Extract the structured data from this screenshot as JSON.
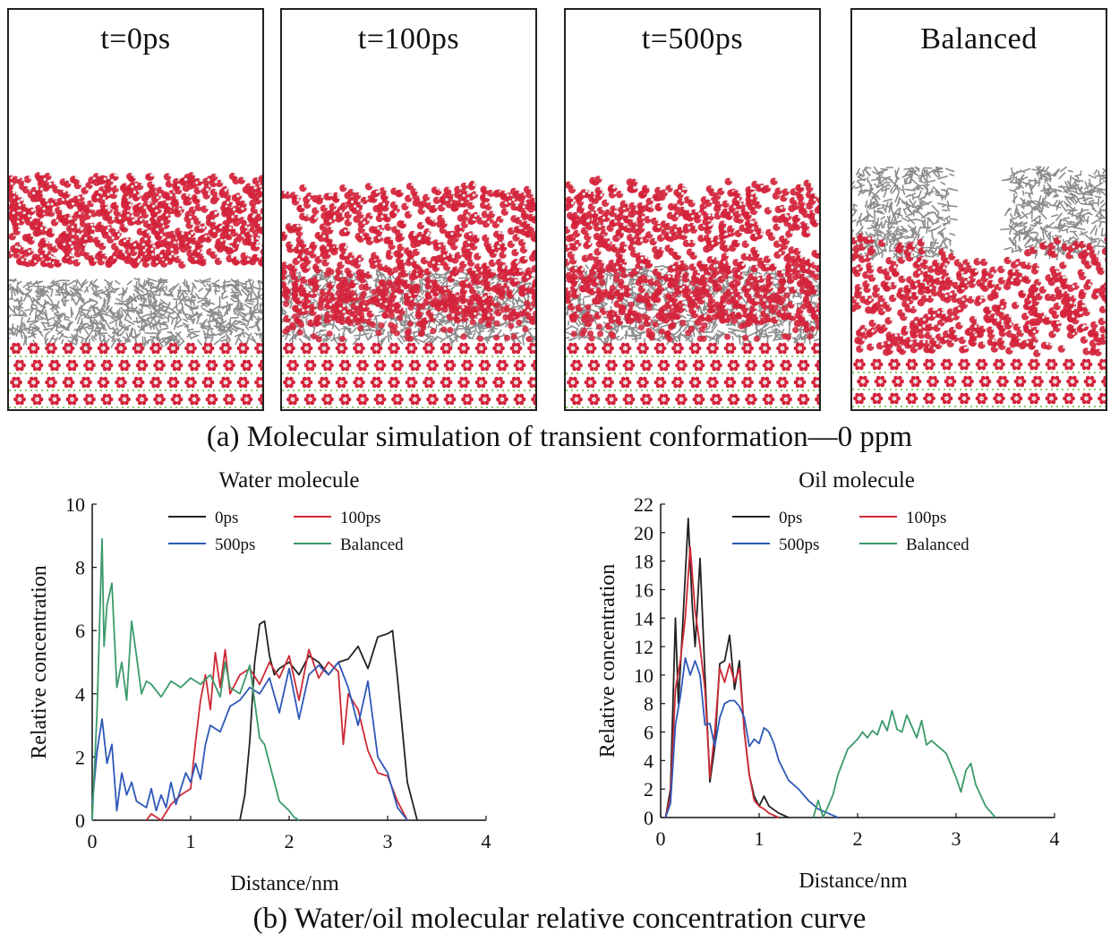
{
  "figure_a": {
    "caption": "(a) Molecular simulation of transient conformation—0 ppm",
    "panels": [
      {
        "label": "t=0ps"
      },
      {
        "label": "t=100ps"
      },
      {
        "label": "t=500ps"
      },
      {
        "label": "Balanced"
      }
    ]
  },
  "figure_b": {
    "caption": "(b) Water/oil molecular relative concentration curve"
  },
  "colors": {
    "0ps": "#222222",
    "100ps": "#cc2a36",
    "500ps": "#2e58b8",
    "Balanced": "#3a9a6a",
    "water_molecule": "#d4233b",
    "oil_molecule": "#8c8c8c",
    "substrate_accent": "#5cb82e"
  },
  "chart_data": [
    {
      "type": "line",
      "title": "Water molecule",
      "xlabel": "Distance/nm",
      "ylabel": "Relative concentration",
      "xlim": [
        0,
        4
      ],
      "ylim": [
        0,
        10
      ],
      "xticks": [
        "0",
        "1",
        "2",
        "3",
        "4"
      ],
      "yticks": [
        "0",
        "2",
        "4",
        "6",
        "8",
        "10"
      ],
      "legend": "top",
      "series": [
        {
          "name": "0ps",
          "x": [
            1.5,
            1.55,
            1.6,
            1.65,
            1.7,
            1.75,
            1.8,
            1.85,
            1.9,
            2.0,
            2.1,
            2.2,
            2.3,
            2.4,
            2.5,
            2.6,
            2.7,
            2.8,
            2.9,
            3.0,
            3.05,
            3.1,
            3.2,
            3.3
          ],
          "y": [
            0,
            0.8,
            2.5,
            5.0,
            6.2,
            6.3,
            5.2,
            4.6,
            4.8,
            5.0,
            4.6,
            5.2,
            5.0,
            4.6,
            5.0,
            5.1,
            5.5,
            4.8,
            5.8,
            5.9,
            6.0,
            4.5,
            1.2,
            0
          ]
        },
        {
          "name": "100ps",
          "x": [
            0.55,
            0.6,
            0.7,
            0.8,
            0.9,
            1.0,
            1.05,
            1.1,
            1.15,
            1.2,
            1.25,
            1.3,
            1.35,
            1.4,
            1.5,
            1.6,
            1.7,
            1.8,
            1.9,
            2.0,
            2.1,
            2.2,
            2.3,
            2.4,
            2.5,
            2.55,
            2.6,
            2.7,
            2.8,
            2.9,
            3.0,
            3.1,
            3.2
          ],
          "y": [
            0,
            0.2,
            0,
            0.5,
            0.8,
            1.0,
            2.5,
            3.8,
            4.6,
            3.5,
            5.3,
            4.2,
            5.4,
            4.0,
            4.6,
            4.8,
            4.3,
            5.0,
            4.5,
            5.2,
            3.8,
            5.4,
            4.5,
            5.0,
            4.7,
            2.4,
            4.0,
            3.5,
            2.2,
            1.5,
            1.4,
            0.6,
            0
          ]
        },
        {
          "name": "500ps",
          "x": [
            0,
            0.05,
            0.1,
            0.15,
            0.2,
            0.25,
            0.3,
            0.35,
            0.4,
            0.45,
            0.5,
            0.55,
            0.6,
            0.65,
            0.7,
            0.75,
            0.8,
            0.85,
            0.9,
            0.95,
            1.0,
            1.05,
            1.1,
            1.15,
            1.2,
            1.3,
            1.4,
            1.5,
            1.6,
            1.7,
            1.8,
            1.9,
            2.0,
            2.1,
            2.2,
            2.3,
            2.4,
            2.5,
            2.6,
            2.7,
            2.8,
            2.9,
            3.0,
            3.1,
            3.2
          ],
          "y": [
            0.5,
            2.2,
            3.2,
            1.8,
            2.4,
            0.3,
            1.5,
            0.8,
            1.2,
            0.6,
            0.5,
            0.4,
            1.0,
            0.3,
            0.8,
            0.4,
            1.2,
            0.5,
            1.0,
            1.5,
            1.2,
            1.8,
            1.3,
            2.4,
            3.0,
            2.8,
            3.6,
            3.8,
            4.2,
            4.0,
            4.5,
            3.4,
            4.8,
            3.2,
            4.6,
            4.9,
            4.6,
            5.0,
            4.2,
            3.0,
            4.4,
            2.0,
            1.5,
            0.4,
            0
          ]
        },
        {
          "name": "Balanced",
          "x": [
            0,
            0.05,
            0.1,
            0.12,
            0.15,
            0.2,
            0.25,
            0.3,
            0.35,
            0.4,
            0.45,
            0.5,
            0.55,
            0.6,
            0.7,
            0.8,
            0.9,
            1.0,
            1.1,
            1.2,
            1.3,
            1.35,
            1.4,
            1.5,
            1.6,
            1.7,
            1.75,
            1.8,
            1.9,
            2.0,
            2.05,
            2.1
          ],
          "y": [
            0,
            3.5,
            8.9,
            5.5,
            6.8,
            7.5,
            4.2,
            5.0,
            3.8,
            6.3,
            5.2,
            4.0,
            4.4,
            4.3,
            3.9,
            4.4,
            4.2,
            4.5,
            4.3,
            4.6,
            3.9,
            5.0,
            4.2,
            4.0,
            4.9,
            2.6,
            2.4,
            1.8,
            0.6,
            0.3,
            0.1,
            0
          ]
        }
      ]
    },
    {
      "type": "line",
      "title": "Oil molecule",
      "xlabel": "Distance/nm",
      "ylabel": "Relative concentration",
      "xlim": [
        0,
        4
      ],
      "ylim": [
        0,
        22
      ],
      "xticks": [
        "0",
        "1",
        "2",
        "3",
        "4"
      ],
      "yticks": [
        "0",
        "2",
        "4",
        "6",
        "8",
        "10",
        "12",
        "14",
        "16",
        "18",
        "20",
        "22"
      ],
      "legend": "top",
      "series": [
        {
          "name": "0ps",
          "x": [
            0.05,
            0.1,
            0.15,
            0.18,
            0.22,
            0.25,
            0.28,
            0.32,
            0.35,
            0.4,
            0.45,
            0.5,
            0.55,
            0.6,
            0.65,
            0.7,
            0.75,
            0.8,
            0.85,
            0.9,
            0.95,
            1.0,
            1.05,
            1.1,
            1.2,
            1.3
          ],
          "y": [
            0,
            2.0,
            14.0,
            8.0,
            13.0,
            17.0,
            21.0,
            15.0,
            12.0,
            18.2,
            10.0,
            2.5,
            5.0,
            10.8,
            11.0,
            12.8,
            9.0,
            11.0,
            6.0,
            3.0,
            1.5,
            0.8,
            1.5,
            0.8,
            0.3,
            0
          ]
        },
        {
          "name": "100ps",
          "x": [
            0.05,
            0.1,
            0.15,
            0.2,
            0.25,
            0.3,
            0.35,
            0.4,
            0.45,
            0.5,
            0.55,
            0.6,
            0.65,
            0.7,
            0.75,
            0.8,
            0.85,
            0.9,
            0.95,
            1.0,
            1.05,
            1.1,
            1.2
          ],
          "y": [
            0,
            1.5,
            9.0,
            11.0,
            14.0,
            19.0,
            14.5,
            12.0,
            9.0,
            2.8,
            6.0,
            10.5,
            9.5,
            10.8,
            9.5,
            10.5,
            6.0,
            3.0,
            1.2,
            0.8,
            0.6,
            0.3,
            0
          ]
        },
        {
          "name": "500ps",
          "x": [
            0.05,
            0.1,
            0.15,
            0.2,
            0.25,
            0.3,
            0.35,
            0.4,
            0.45,
            0.5,
            0.55,
            0.6,
            0.65,
            0.7,
            0.75,
            0.8,
            0.85,
            0.9,
            0.95,
            1.0,
            1.05,
            1.1,
            1.15,
            1.2,
            1.3,
            1.4,
            1.5,
            1.6,
            1.7,
            1.8
          ],
          "y": [
            0,
            1.0,
            6.5,
            8.5,
            11.2,
            10.0,
            11.0,
            10.0,
            6.5,
            6.6,
            5.0,
            7.0,
            8.0,
            8.2,
            8.2,
            7.8,
            7.0,
            5.0,
            5.5,
            5.2,
            6.3,
            6.0,
            5.2,
            4.0,
            2.6,
            2.0,
            1.2,
            0.6,
            0.3,
            0
          ]
        },
        {
          "name": "Balanced",
          "x": [
            1.55,
            1.6,
            1.65,
            1.7,
            1.75,
            1.8,
            1.9,
            2.0,
            2.05,
            2.1,
            2.15,
            2.2,
            2.25,
            2.3,
            2.35,
            2.4,
            2.45,
            2.5,
            2.55,
            2.6,
            2.65,
            2.7,
            2.75,
            2.8,
            2.85,
            2.9,
            3.0,
            3.05,
            3.1,
            3.15,
            3.2,
            3.3,
            3.4
          ],
          "y": [
            0,
            1.2,
            0,
            0.8,
            1.6,
            3.0,
            4.8,
            5.5,
            6.0,
            5.6,
            6.1,
            5.8,
            6.8,
            6.1,
            7.5,
            6.2,
            6.0,
            7.2,
            6.4,
            5.6,
            6.8,
            5.1,
            5.4,
            5.1,
            4.8,
            4.5,
            2.8,
            1.8,
            3.3,
            3.8,
            2.3,
            0.8,
            0
          ]
        }
      ]
    }
  ]
}
